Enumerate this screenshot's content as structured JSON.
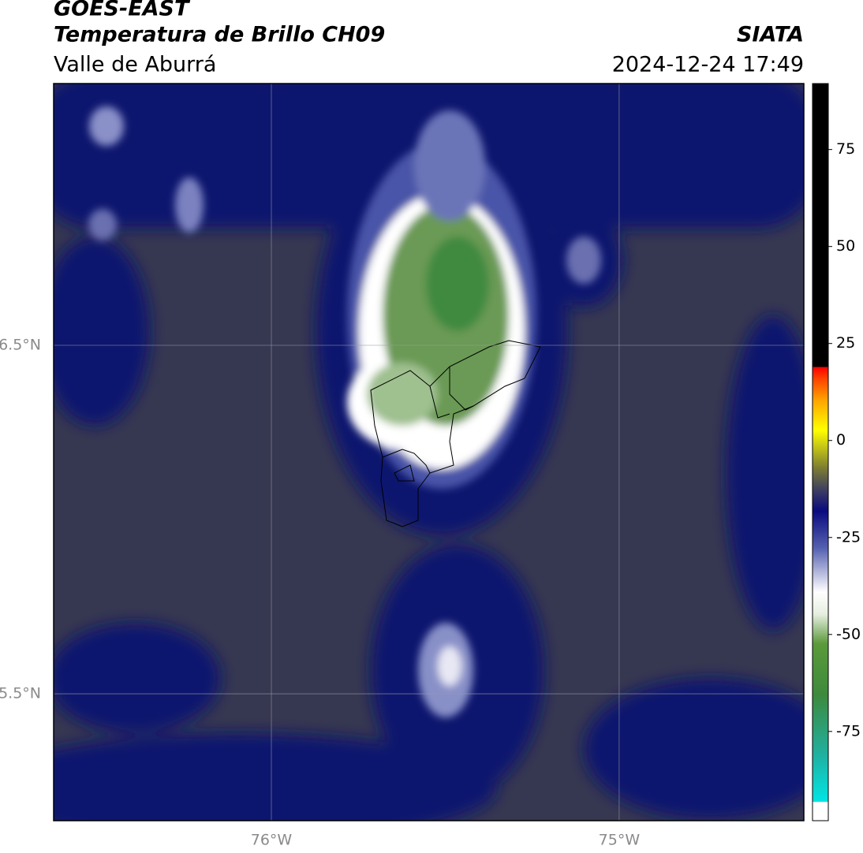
{
  "header": {
    "title": "GOES-EAST",
    "subtitle": "Temperatura de Brillo CH09",
    "region": "Valle de Aburrá",
    "source": "SIATA",
    "datetime": "2024-12-24 17:49"
  },
  "map": {
    "lon_lim": [
      -76.626,
      -74.469
    ],
    "lat_lim": [
      5.136,
      7.251
    ],
    "lon_ticks": [
      {
        "value": -76,
        "label": "76°W"
      },
      {
        "value": -75,
        "label": "75°W"
      }
    ],
    "lat_ticks": [
      {
        "value": 6.5,
        "label": "6.5°N"
      },
      {
        "value": 5.5,
        "label": "5.5°N"
      }
    ]
  },
  "colorbar": {
    "lim": [
      -98,
      92
    ],
    "ticks": [
      75,
      50,
      25,
      0,
      -25,
      -50,
      -75
    ]
  }
}
